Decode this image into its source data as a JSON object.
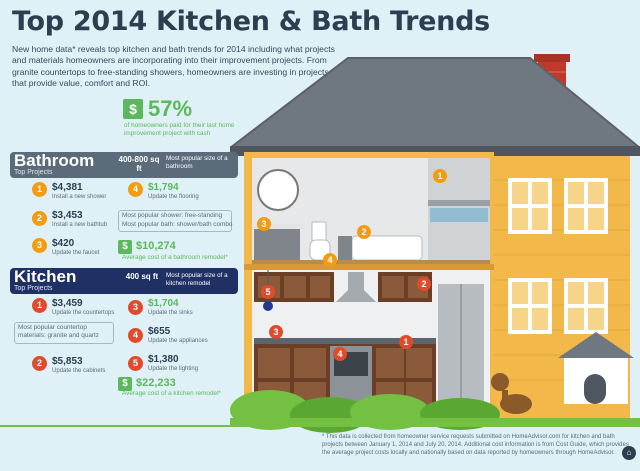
{
  "title": "Top 2014 Kitchen & Bath Trends",
  "intro": "New home data* reveals top kitchen and bath trends for 2014 including what projects and materials homeowners are incorporating into their improvement projects. From granite countertops to free-standing showers, homeowners are investing in projects that provide value, comfort and ROI.",
  "stat": {
    "value": "57%",
    "description": "of homeowners paid for their last home improvement project with cash"
  },
  "bathroom": {
    "title": "Bathroom",
    "subtitle": "Top Projects",
    "size": "400-800 sq ft",
    "size_desc": "Most popular size of a bathroom",
    "items": [
      {
        "num": "1",
        "price": "$4,381",
        "label": "Install a new shower"
      },
      {
        "num": "2",
        "price": "$3,453",
        "label": "Install a new bathtub"
      },
      {
        "num": "3",
        "price": "$420",
        "label": "Update the faucet"
      },
      {
        "num": "4",
        "price": "$1,794",
        "label": "Update the flooring"
      }
    ],
    "note_line1": "Most popular shower: free-standing",
    "note_line2": "Most popular bath: shower/bath combo",
    "avg_price": "$10,274",
    "avg_label": "Average cost of a bathroom remodel*"
  },
  "kitchen": {
    "title": "Kitchen",
    "subtitle": "Top Projects",
    "size": "400 sq ft",
    "size_desc": "Most popular size of a kitchen remodel",
    "items": [
      {
        "num": "1",
        "price": "$3,459",
        "label": "Update the countertops"
      },
      {
        "num": "2",
        "price": "$5,853",
        "label": "Update the cabinets"
      },
      {
        "num": "3",
        "price": "$1,704",
        "label": "Update the sinks"
      },
      {
        "num": "4",
        "price": "$655",
        "label": "Update the appliances"
      },
      {
        "num": "5",
        "price": "$1,380",
        "label": "Update the lighting"
      }
    ],
    "note": "Most popular countertop materials: granite and quartz",
    "avg_price": "$22,233",
    "avg_label": "Average cost of a kitchen remodel*"
  },
  "footnote": "* This data is collected from homeowner service requests submitted on HomeAdvisor.com for kitchen and bath projects between January 1, 2014 and July 20, 2014. Additional cost information is from Cost Guide, which provides the average project costs locally and nationally based on data reported by homeowners through HomeAdvisor.",
  "colors": {
    "accent": "#5cb85c",
    "orange": "#f39c12",
    "red": "#e04b2c",
    "navy": "#253a8e",
    "house": "#f2b84a",
    "roof": "#6f7780"
  },
  "icons": [
    "dollar-icon",
    "house-illustration",
    "dog-illustration",
    "doghouse-illustration",
    "brand-logo-icon"
  ]
}
